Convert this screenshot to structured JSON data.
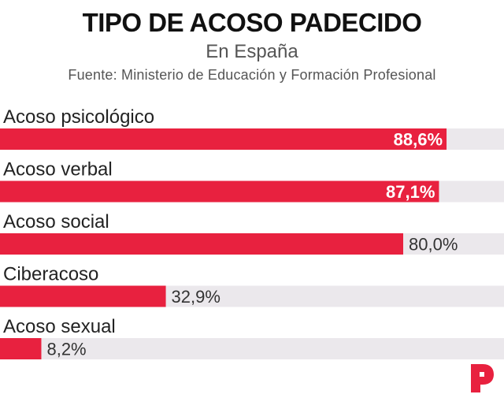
{
  "title": "TIPO DE ACOSO PADECIDO",
  "subtitle": "En España",
  "source": "Fuente: Ministerio de Educación y Formación Profesional",
  "colors": {
    "bar": "#e8213f",
    "track": "#ebe8ec",
    "title": "#111111"
  },
  "logo_icon": "p-brand-logo-icon",
  "chart_data": {
    "type": "bar",
    "orientation": "horizontal",
    "title": "TIPO DE ACOSO PADECIDO",
    "subtitle": "En España",
    "categories": [
      "Acoso psicológico",
      "Acoso verbal",
      "Acoso social",
      "Ciberacoso",
      "Acoso sexual"
    ],
    "values": [
      88.6,
      87.1,
      80.0,
      32.9,
      8.2
    ],
    "value_labels": [
      "88,6%",
      "87,1%",
      "80,0%",
      "32,9%",
      "8,2%"
    ],
    "label_inside": [
      true,
      true,
      false,
      false,
      false
    ],
    "xlim": [
      0,
      100
    ],
    "unit": "%",
    "grid": false,
    "legend": "none"
  }
}
